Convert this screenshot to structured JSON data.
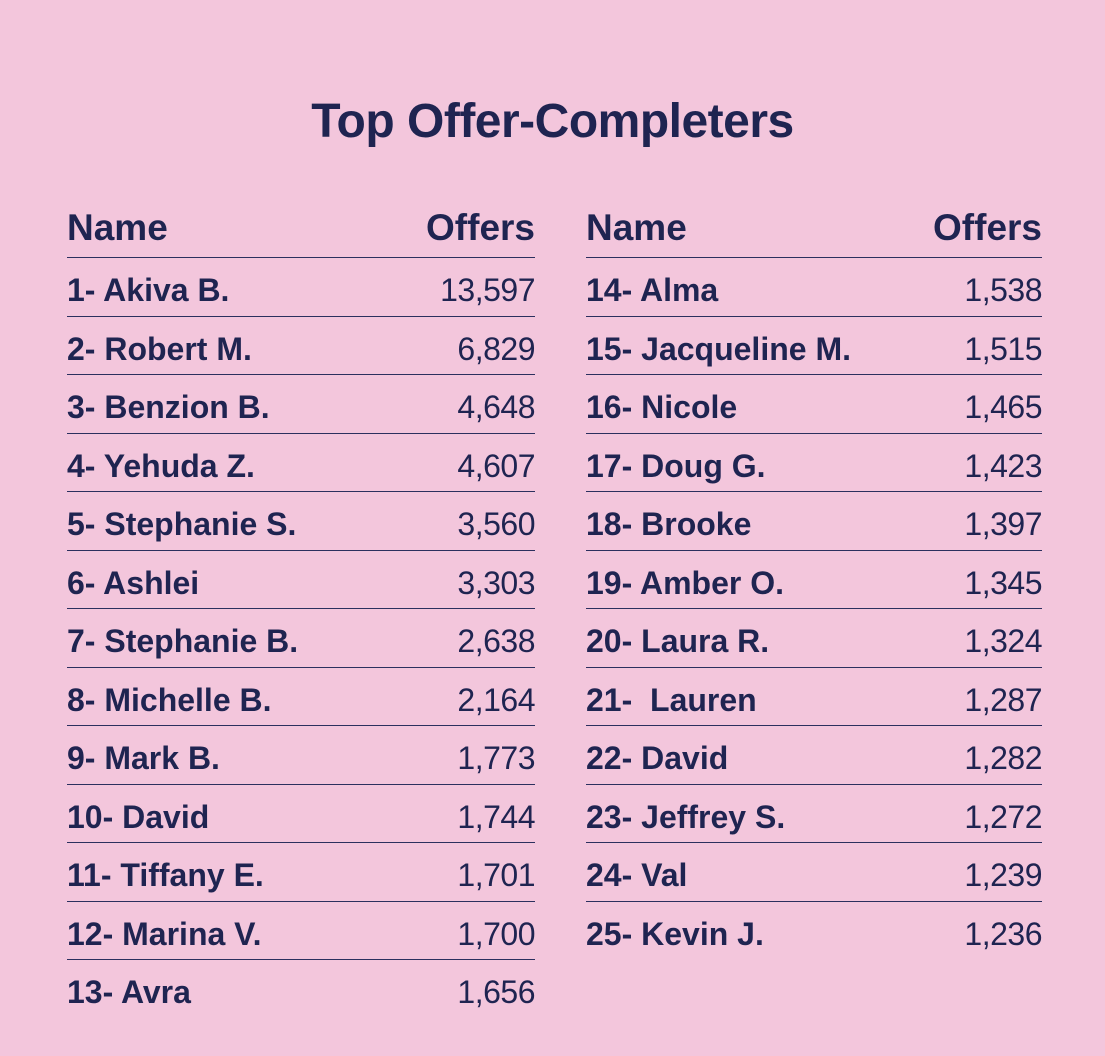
{
  "chart_data": {
    "type": "table",
    "title": "Top Offer-Completers",
    "columns": [
      "Name",
      "Offers"
    ],
    "left_rows": [
      {
        "name": "1- Akiva B.",
        "offers": "13,597"
      },
      {
        "name": "2- Robert M.",
        "offers": "6,829"
      },
      {
        "name": "3- Benzion B.",
        "offers": "4,648"
      },
      {
        "name": "4- Yehuda Z.",
        "offers": "4,607"
      },
      {
        "name": "5- Stephanie S.",
        "offers": "3,560"
      },
      {
        "name": "6- Ashlei",
        "offers": "3,303"
      },
      {
        "name": "7- Stephanie B.",
        "offers": "2,638"
      },
      {
        "name": "8- Michelle B.",
        "offers": "2,164"
      },
      {
        "name": "9- Mark B.",
        "offers": "1,773"
      },
      {
        "name": "10- David",
        "offers": "1,744"
      },
      {
        "name": "11- Tiffany E.",
        "offers": "1,701"
      },
      {
        "name": "12- Marina V.",
        "offers": "1,700"
      },
      {
        "name": "13- Avra",
        "offers": "1,656"
      }
    ],
    "right_rows": [
      {
        "name": "14- Alma",
        "offers": "1,538"
      },
      {
        "name": "15- Jacqueline M.",
        "offers": "1,515"
      },
      {
        "name": "16- Nicole",
        "offers": "1,465"
      },
      {
        "name": "17- Doug G.",
        "offers": "1,423"
      },
      {
        "name": "18- Brooke",
        "offers": "1,397"
      },
      {
        "name": "19- Amber O.",
        "offers": "1,345"
      },
      {
        "name": "20- Laura R.",
        "offers": "1,324"
      },
      {
        "name": "21-  Lauren",
        "offers": "1,287"
      },
      {
        "name": "22- David",
        "offers": "1,282"
      },
      {
        "name": "23- Jeffrey S.",
        "offers": "1,272"
      },
      {
        "name": "24- Val",
        "offers": "1,239"
      },
      {
        "name": "25- Kevin J.",
        "offers": "1,236"
      }
    ]
  },
  "colors": {
    "background": "#f3c6dc",
    "text": "#1f2451"
  }
}
